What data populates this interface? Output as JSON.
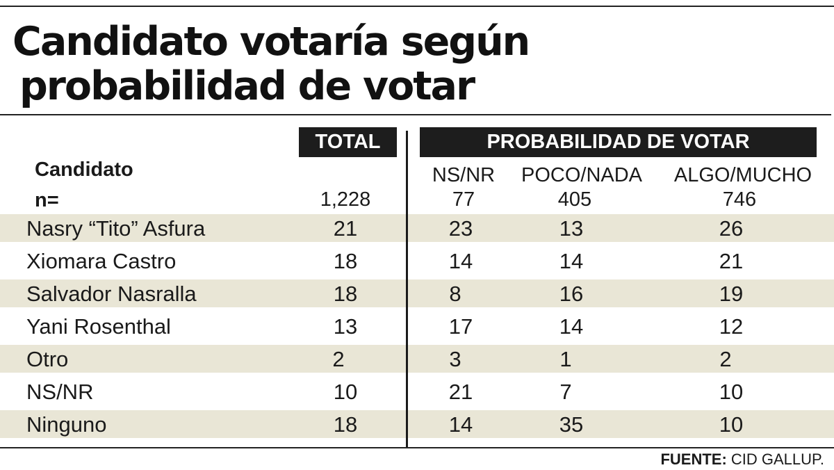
{
  "title": {
    "line1": "Candidato votaría según",
    "line2": "probabilidad de votar"
  },
  "header": {
    "total_label": "TOTAL",
    "prob_label": "PROBABILIDAD DE VOTAR",
    "candidate_label": "Candidato",
    "n_label": "n=",
    "columns": [
      "NS/NR",
      "POCO/NADA",
      "ALGO/MUCHO"
    ]
  },
  "chart_data": {
    "type": "table",
    "title": "Candidato votaría según probabilidad de votar",
    "column_headers": [
      "TOTAL",
      "NS/NR",
      "POCO/NADA",
      "ALGO/MUCHO"
    ],
    "n": [
      "1,228",
      "77",
      "405",
      "746"
    ],
    "rows": [
      {
        "name": "Nasry “Tito” Asfura",
        "values": [
          "21",
          "23",
          "13",
          "26"
        ]
      },
      {
        "name": "Xiomara Castro",
        "values": [
          "18",
          "14",
          "14",
          "21"
        ]
      },
      {
        "name": "Salvador Nasralla",
        "values": [
          "18",
          "8",
          "16",
          "19"
        ]
      },
      {
        "name": "Yani Rosenthal",
        "values": [
          "13",
          "17",
          "14",
          "12"
        ]
      },
      {
        "name": "Otro",
        "values": [
          "2",
          "3",
          "1",
          "2"
        ]
      },
      {
        "name": "NS/NR",
        "values": [
          "10",
          "21",
          "7",
          "10"
        ]
      },
      {
        "name": "Ninguno",
        "values": [
          "18",
          "14",
          "35",
          "10"
        ]
      }
    ]
  },
  "source": {
    "key": "FUENTE:",
    "value": "CID GALLUP."
  },
  "colors": {
    "band": "#e9e6d6",
    "header_bg": "#1d1d1d",
    "text": "#1a1a1a"
  }
}
